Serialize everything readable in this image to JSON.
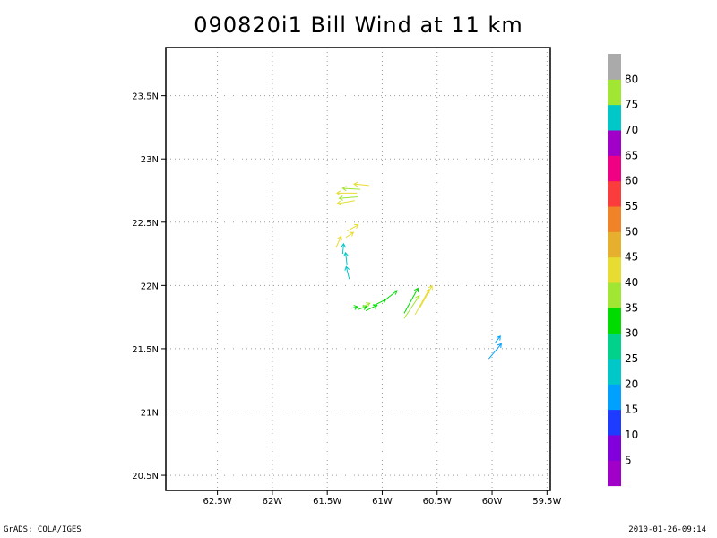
{
  "title": "090820i1  Bill  Wind  at  11  km",
  "footer_left": "GrADS: COLA/IGES",
  "footer_right": "2010-01-26-09:14",
  "chart_data": {
    "type": "vector",
    "title": "090820i1  Bill  Wind  at  11  km",
    "xlim": [
      -62.97,
      -59.47
    ],
    "ylim": [
      20.38,
      23.88
    ],
    "x_ticks": [
      {
        "value": -62.5,
        "label": "62.5W"
      },
      {
        "value": -62.0,
        "label": "62W"
      },
      {
        "value": -61.5,
        "label": "61.5W"
      },
      {
        "value": -61.0,
        "label": "61W"
      },
      {
        "value": -60.5,
        "label": "60.5W"
      },
      {
        "value": -60.0,
        "label": "60W"
      },
      {
        "value": -59.5,
        "label": "59.5W"
      }
    ],
    "y_ticks": [
      {
        "value": 20.5,
        "label": "20.5N"
      },
      {
        "value": 21.0,
        "label": "21N"
      },
      {
        "value": 21.5,
        "label": "21.5N"
      },
      {
        "value": 22.0,
        "label": "22N"
      },
      {
        "value": 22.5,
        "label": "22.5N"
      },
      {
        "value": 23.0,
        "label": "23N"
      },
      {
        "value": 23.5,
        "label": "23.5N"
      }
    ],
    "grid": true,
    "colorbar": {
      "levels": [
        "5",
        "10",
        "15",
        "20",
        "25",
        "30",
        "35",
        "40",
        "45",
        "50",
        "55",
        "60",
        "65",
        "70",
        "75",
        "80"
      ],
      "colors": [
        "#a000c8",
        "#8200dc",
        "#1e3cff",
        "#00a0ff",
        "#00c8c8",
        "#00d28c",
        "#00dc00",
        "#a0e632",
        "#e6dc32",
        "#e6af2d",
        "#f08228",
        "#fa3c3c",
        "#f00082",
        "#a000c8",
        "#00c8c8",
        "#a0e632",
        "#aaaaaa"
      ]
    },
    "vectors": [
      {
        "x": -61.12,
        "y": 22.79,
        "u": -6.0,
        "v": 0.6,
        "color": "#e6dc32"
      },
      {
        "x": -61.2,
        "y": 22.76,
        "u": -7.0,
        "v": 0.4,
        "color": "#a0e632"
      },
      {
        "x": -61.23,
        "y": 22.73,
        "u": -8.0,
        "v": 0.0,
        "color": "#e6dc32"
      },
      {
        "x": -61.22,
        "y": 22.7,
        "u": -7.5,
        "v": -0.6,
        "color": "#a0e632"
      },
      {
        "x": -61.25,
        "y": 22.67,
        "u": -7.0,
        "v": -1.2,
        "color": "#e6dc32"
      },
      {
        "x": -61.32,
        "y": 22.43,
        "u": 4.5,
        "v": 2.5,
        "color": "#e6dc32"
      },
      {
        "x": -61.33,
        "y": 22.38,
        "u": 3.0,
        "v": 2.0,
        "color": "#e6dc32"
      },
      {
        "x": -61.42,
        "y": 22.3,
        "u": 2.0,
        "v": 4.5,
        "color": "#e6dc32"
      },
      {
        "x": -61.36,
        "y": 22.25,
        "u": 0.4,
        "v": 4.0,
        "color": "#00c8c8"
      },
      {
        "x": -61.32,
        "y": 22.16,
        "u": -0.6,
        "v": 5.0,
        "color": "#00c8c8"
      },
      {
        "x": -61.3,
        "y": 22.05,
        "u": -1.2,
        "v": 5.0,
        "color": "#00c8c8"
      },
      {
        "x": -61.28,
        "y": 21.82,
        "u": 2.5,
        "v": 0.6,
        "color": "#00dc00"
      },
      {
        "x": -61.22,
        "y": 21.81,
        "u": 3.5,
        "v": 1.2,
        "color": "#00dc00"
      },
      {
        "x": -61.15,
        "y": 21.8,
        "u": 4.5,
        "v": 2.2,
        "color": "#00dc00"
      },
      {
        "x": -61.08,
        "y": 21.84,
        "u": 5.0,
        "v": 2.5,
        "color": "#00dc00"
      },
      {
        "x": -61.18,
        "y": 21.83,
        "u": 3.0,
        "v": 1.5,
        "color": "#a0e632"
      },
      {
        "x": -60.98,
        "y": 21.88,
        "u": 5.0,
        "v": 4.0,
        "color": "#00dc00"
      },
      {
        "x": -60.8,
        "y": 21.78,
        "u": 5.5,
        "v": 10.0,
        "color": "#00dc00"
      },
      {
        "x": -60.8,
        "y": 21.74,
        "u": 6.0,
        "v": 9.0,
        "color": "#a0e632"
      },
      {
        "x": -60.7,
        "y": 21.77,
        "u": 5.5,
        "v": 10.0,
        "color": "#e6dc32"
      },
      {
        "x": -60.66,
        "y": 21.82,
        "u": 5.0,
        "v": 9.0,
        "color": "#e6dc32"
      },
      {
        "x": -60.03,
        "y": 21.42,
        "u": 5.0,
        "v": 6.0,
        "color": "#00a0ff"
      },
      {
        "x": -59.97,
        "y": 21.55,
        "u": 2.0,
        "v": 2.5,
        "color": "#00a0ff"
      }
    ]
  }
}
